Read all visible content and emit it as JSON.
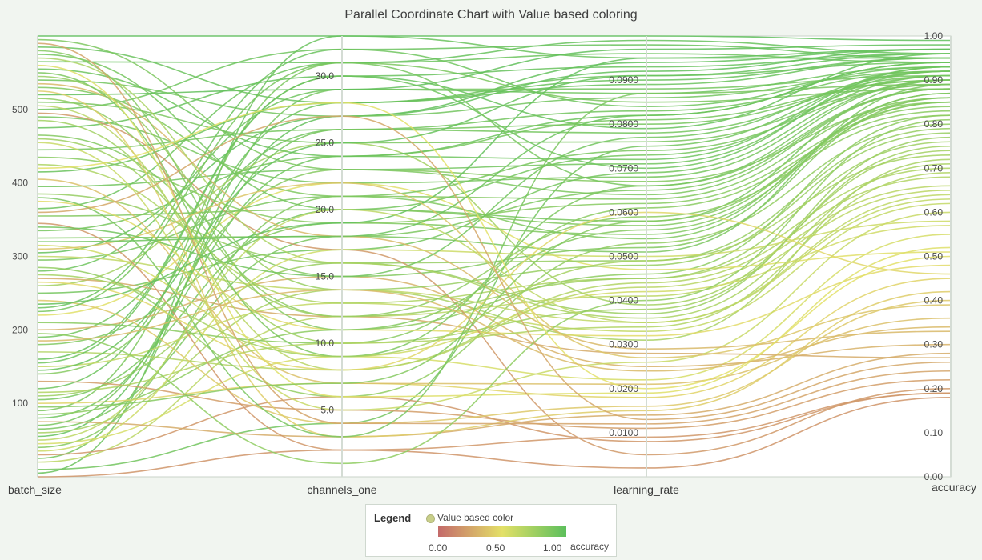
{
  "chart_data": {
    "type": "parallel_coordinates",
    "title": "Parallel Coordinate Chart with Value based coloring",
    "axes": [
      {
        "name": "batch_size",
        "range": [
          0,
          600
        ],
        "ticks": [
          {
            "v": 100,
            "label": "100"
          },
          {
            "v": 200,
            "label": "200"
          },
          {
            "v": 300,
            "label": "300"
          },
          {
            "v": 400,
            "label": "400"
          },
          {
            "v": 500,
            "label": "500"
          }
        ]
      },
      {
        "name": "channels_one",
        "range": [
          0,
          33
        ],
        "ticks": [
          {
            "v": 5,
            "label": "5.0"
          },
          {
            "v": 10,
            "label": "10.0"
          },
          {
            "v": 15,
            "label": "15.0"
          },
          {
            "v": 20,
            "label": "20.0"
          },
          {
            "v": 25,
            "label": "25.0"
          },
          {
            "v": 30,
            "label": "30.0"
          }
        ]
      },
      {
        "name": "learning_rate",
        "range": [
          0,
          0.1
        ],
        "ticks": [
          {
            "v": 0.01,
            "label": "0.0100"
          },
          {
            "v": 0.02,
            "label": "0.0200"
          },
          {
            "v": 0.03,
            "label": "0.0300"
          },
          {
            "v": 0.04,
            "label": "0.0400"
          },
          {
            "v": 0.05,
            "label": "0.0500"
          },
          {
            "v": 0.06,
            "label": "0.0600"
          },
          {
            "v": 0.07,
            "label": "0.0700"
          },
          {
            "v": 0.08,
            "label": "0.0800"
          },
          {
            "v": 0.09,
            "label": "0.0900"
          }
        ]
      },
      {
        "name": "accuracy",
        "range": [
          0,
          1
        ],
        "ticks": [
          {
            "v": 0,
            "label": "0.00"
          },
          {
            "v": 0.1,
            "label": "0.10"
          },
          {
            "v": 0.2,
            "label": "0.20"
          },
          {
            "v": 0.3,
            "label": "0.30"
          },
          {
            "v": 0.4,
            "label": "0.40"
          },
          {
            "v": 0.5,
            "label": "0.50"
          },
          {
            "v": 0.6,
            "label": "0.60"
          },
          {
            "v": 0.7,
            "label": "0.70"
          },
          {
            "v": 0.8,
            "label": "0.80"
          },
          {
            "v": 0.9,
            "label": "0.90"
          },
          {
            "v": 1,
            "label": "1.00"
          }
        ]
      }
    ],
    "color_variable": "accuracy",
    "color_scale": {
      "min": 0,
      "mid": 0.5,
      "max": 1,
      "colors": [
        "#c46a6a",
        "#e3e068",
        "#5cbf5c"
      ]
    },
    "records": [
      [
        0,
        2,
        0.002,
        0.18
      ],
      [
        5,
        33,
        0.095,
        0.95
      ],
      [
        10,
        4,
        0.075,
        0.92
      ],
      [
        20,
        12,
        0.041,
        0.65
      ],
      [
        25,
        29,
        0.088,
        0.91
      ],
      [
        30,
        6,
        0.008,
        0.19
      ],
      [
        40,
        21,
        0.063,
        0.86
      ],
      [
        45,
        9,
        0.022,
        0.55
      ],
      [
        55,
        27,
        0.094,
        0.97
      ],
      [
        60,
        14,
        0.031,
        0.72
      ],
      [
        65,
        18,
        0.051,
        0.89
      ],
      [
        75,
        3,
        0.014,
        0.28
      ],
      [
        80,
        24,
        0.072,
        0.93
      ],
      [
        85,
        11,
        0.046,
        0.82
      ],
      [
        90,
        31,
        0.085,
        0.88
      ],
      [
        100,
        7,
        0.018,
        0.45
      ],
      [
        105,
        20,
        0.058,
        0.9
      ],
      [
        110,
        16,
        0.037,
        0.77
      ],
      [
        120,
        28,
        0.091,
        0.94
      ],
      [
        130,
        5,
        0.011,
        0.22
      ],
      [
        140,
        23,
        0.067,
        0.85
      ],
      [
        150,
        13,
        0.033,
        0.62
      ],
      [
        160,
        30,
        0.079,
        0.96
      ],
      [
        170,
        8,
        0.044,
        0.68
      ],
      [
        180,
        19,
        0.055,
        0.87
      ],
      [
        190,
        26,
        0.083,
        0.92
      ],
      [
        200,
        15,
        0.025,
        0.3
      ],
      [
        210,
        10,
        0.061,
        0.83
      ],
      [
        220,
        22,
        0.047,
        0.51
      ],
      [
        230,
        32,
        0.098,
        0.95
      ],
      [
        240,
        4,
        0.016,
        0.4
      ],
      [
        250,
        17,
        0.069,
        0.91
      ],
      [
        260,
        25,
        0.039,
        0.74
      ],
      [
        270,
        12,
        0.028,
        0.27
      ],
      [
        280,
        29,
        0.087,
        0.93
      ],
      [
        285,
        6,
        0.053,
        0.8
      ],
      [
        295,
        21,
        0.074,
        0.89
      ],
      [
        300,
        14,
        0.035,
        0.63
      ],
      [
        305,
        27,
        0.092,
        0.97
      ],
      [
        315,
        9,
        0.042,
        0.57
      ],
      [
        325,
        18,
        0.065,
        0.88
      ],
      [
        335,
        24,
        0.081,
        0.9
      ],
      [
        345,
        2,
        0.009,
        0.19
      ],
      [
        355,
        20,
        0.057,
        0.86
      ],
      [
        365,
        31,
        0.096,
        0.94
      ],
      [
        375,
        11,
        0.032,
        0.48
      ],
      [
        385,
        16,
        0.049,
        0.79
      ],
      [
        395,
        23,
        0.071,
        0.92
      ],
      [
        405,
        7,
        0.021,
        0.36
      ],
      [
        415,
        28,
        0.089,
        0.95
      ],
      [
        425,
        13,
        0.045,
        0.7
      ],
      [
        435,
        19,
        0.062,
        0.84
      ],
      [
        445,
        26,
        0.078,
        0.91
      ],
      [
        455,
        5,
        0.026,
        0.6
      ],
      [
        465,
        15,
        0.052,
        0.86
      ],
      [
        475,
        30,
        0.093,
        0.96
      ],
      [
        485,
        10,
        0.038,
        0.75
      ],
      [
        490,
        22,
        0.068,
        0.9
      ],
      [
        495,
        17,
        0.005,
        0.2
      ],
      [
        500,
        32,
        0.084,
        0.93
      ],
      [
        505,
        8,
        0.043,
        0.66
      ],
      [
        510,
        25,
        0.076,
        0.89
      ],
      [
        515,
        12,
        0.059,
        0.82
      ],
      [
        520,
        29,
        0.097,
        0.98
      ],
      [
        525,
        3,
        0.015,
        0.42
      ],
      [
        530,
        21,
        0.054,
        0.87
      ],
      [
        535,
        18,
        0.029,
        0.33
      ],
      [
        540,
        27,
        0.086,
        0.92
      ],
      [
        545,
        14,
        0.048,
        0.78
      ],
      [
        550,
        9,
        0.066,
        0.88
      ],
      [
        555,
        24,
        0.082,
        0.94
      ],
      [
        560,
        6,
        0.019,
        0.52
      ],
      [
        565,
        31,
        0.099,
        0.96
      ],
      [
        570,
        16,
        0.036,
        0.71
      ],
      [
        575,
        20,
        0.073,
        0.91
      ],
      [
        580,
        11,
        0.056,
        0.85
      ],
      [
        585,
        28,
        0.09,
        0.95
      ],
      [
        590,
        4,
        0.012,
        0.24
      ],
      [
        595,
        23,
        0.064,
        0.88
      ],
      [
        600,
        33,
        0.1,
        0.99
      ],
      [
        35,
        17,
        0.05,
        0.58
      ],
      [
        70,
        26,
        0.08,
        0.9
      ],
      [
        115,
        10,
        0.034,
        0.69
      ],
      [
        155,
        30,
        0.07,
        0.93
      ],
      [
        195,
        1,
        0.04,
        0.81
      ],
      [
        235,
        19,
        0.095,
        0.97
      ],
      [
        265,
        8,
        0.06,
        0.46
      ],
      [
        310,
        22,
        0.027,
        0.39
      ],
      [
        340,
        15,
        0.077,
        0.92
      ],
      [
        380,
        3,
        0.087,
        0.89
      ],
      [
        420,
        28,
        0.02,
        0.5
      ],
      [
        460,
        12,
        0.045,
        0.76
      ],
      [
        50,
        20,
        0.035,
        0.64
      ],
      [
        95,
        7,
        0.058,
        0.85
      ],
      [
        145,
        25,
        0.091,
        0.96
      ],
      [
        185,
        14,
        0.024,
        0.34
      ],
      [
        225,
        31,
        0.066,
        0.9
      ],
      [
        275,
        9,
        0.049,
        0.73
      ],
      [
        320,
        18,
        0.082,
        0.94
      ],
      [
        360,
        27,
        0.013,
        0.26
      ]
    ]
  },
  "legend": {
    "title": "Legend",
    "mode_label": "Value based color",
    "tick_labels": [
      "0.00",
      "0.50",
      "1.00"
    ],
    "variable": "accuracy"
  }
}
